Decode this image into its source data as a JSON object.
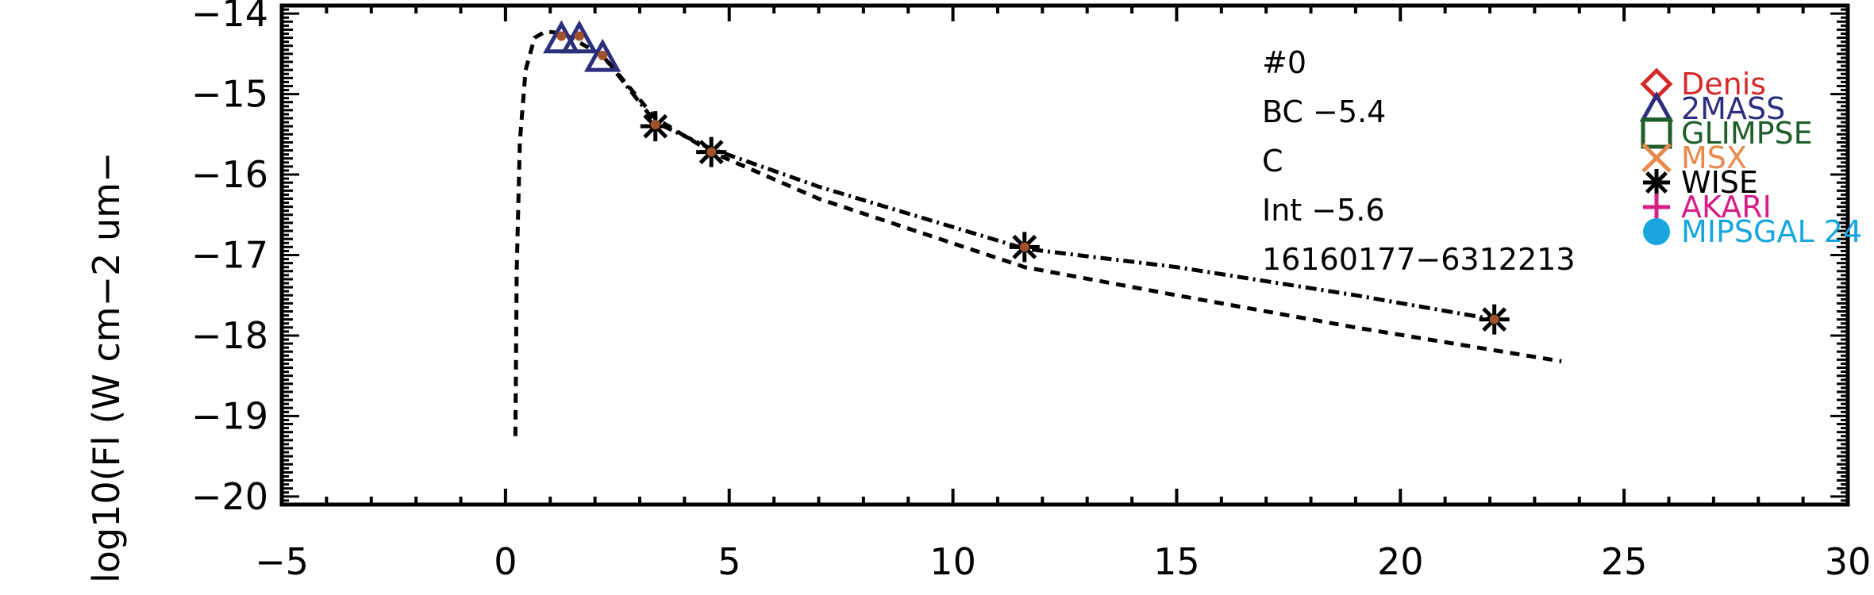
{
  "chart_data": {
    "type": "scatter",
    "title": "",
    "xlabel": "",
    "ylabel": "log10(Fl (W cm−2 um−",
    "xlim": [
      -5,
      30
    ],
    "ylim": [
      -20.1,
      -13.9
    ],
    "x_ticks": [
      -5,
      0,
      5,
      10,
      15,
      20,
      25,
      30
    ],
    "x_tick_labels": [
      "−5",
      "0",
      "5",
      "10",
      "15",
      "20",
      "25",
      "30"
    ],
    "y_ticks": [
      -14,
      -15,
      -16,
      -17,
      -18,
      -19,
      -20
    ],
    "y_tick_labels": [
      "−14",
      "−15",
      "−16",
      "−17",
      "−18",
      "−19",
      "−20"
    ],
    "annotations": [
      "#0",
      "BC −5.4",
      "C",
      "Int −5.6",
      "16160177−6312213"
    ],
    "legend_position": "right",
    "legend": [
      {
        "label": "Denis",
        "marker": "diamond",
        "color": "#d42a2a"
      },
      {
        "label": "2MASS",
        "marker": "triangle",
        "color": "#2b2f7c"
      },
      {
        "label": "GLIMPSE",
        "marker": "square",
        "color": "#1f5e2a"
      },
      {
        "label": "MSX",
        "marker": "x",
        "color": "#e8894d"
      },
      {
        "label": "WISE",
        "marker": "asterisk",
        "color": "#000000"
      },
      {
        "label": "AKARI",
        "marker": "plus",
        "color": "#d61f86"
      },
      {
        "label": "MIPSGAL 24",
        "marker": "circle",
        "color": "#19a6df"
      }
    ],
    "series": [
      {
        "marker": "triangle",
        "color": "#2b2f7c",
        "points": [
          [
            1.25,
            -14.32
          ],
          [
            1.65,
            -14.32
          ],
          [
            2.17,
            -14.55
          ]
        ]
      },
      {
        "marker": "asterisk",
        "color": "#000000",
        "points": [
          [
            3.35,
            -15.4
          ],
          [
            4.6,
            -15.72
          ],
          [
            11.6,
            -16.9
          ],
          [
            22.1,
            -17.8
          ]
        ]
      },
      {
        "marker": "dot",
        "color": "#a0522d",
        "points": [
          [
            1.25,
            -14.28
          ],
          [
            1.65,
            -14.28
          ],
          [
            2.17,
            -14.52
          ],
          [
            3.35,
            -15.38
          ],
          [
            4.6,
            -15.72
          ],
          [
            11.6,
            -16.9
          ],
          [
            22.1,
            -17.8
          ]
        ]
      },
      {
        "style": "dashed",
        "color": "#000000",
        "points": [
          [
            0.22,
            -19.25
          ],
          [
            0.25,
            -17.2
          ],
          [
            0.32,
            -15.6
          ],
          [
            0.45,
            -14.7
          ],
          [
            0.65,
            -14.3
          ],
          [
            0.9,
            -14.22
          ],
          [
            1.3,
            -14.25
          ],
          [
            2.17,
            -14.52
          ],
          [
            3.35,
            -15.3
          ],
          [
            4.6,
            -15.72
          ],
          [
            7.0,
            -16.3
          ],
          [
            11.6,
            -17.15
          ],
          [
            15.0,
            -17.5
          ],
          [
            19.0,
            -17.9
          ],
          [
            23.6,
            -18.32
          ]
        ]
      },
      {
        "style": "dashdot",
        "color": "#000000",
        "points": [
          [
            2.17,
            -14.52
          ],
          [
            3.35,
            -15.35
          ],
          [
            4.6,
            -15.68
          ],
          [
            7.0,
            -16.15
          ],
          [
            11.6,
            -16.92
          ],
          [
            15.0,
            -17.15
          ],
          [
            19.0,
            -17.5
          ],
          [
            22.1,
            -17.8
          ]
        ]
      }
    ]
  }
}
